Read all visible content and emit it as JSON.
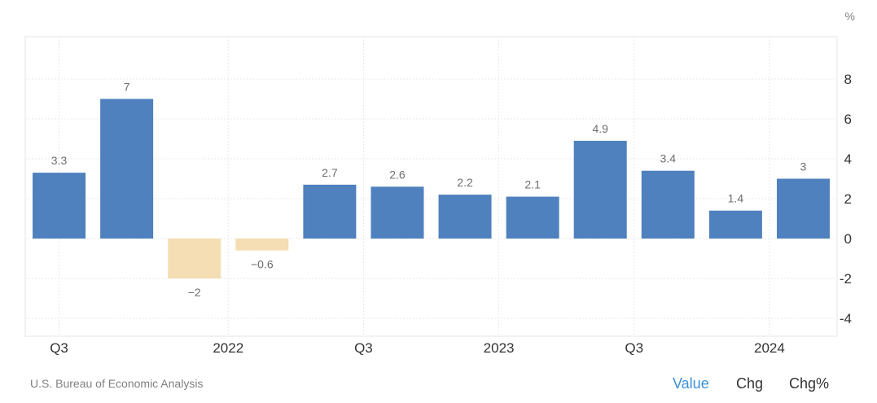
{
  "chart_data": {
    "type": "bar",
    "unit": "%",
    "ylim": [
      -5,
      10
    ],
    "yticks": [
      8,
      6,
      4,
      2,
      0,
      -2,
      -4
    ],
    "grid": true,
    "x_labels": [
      {
        "label": "Q3",
        "index": 0
      },
      {
        "label": "2022",
        "index": 2.5
      },
      {
        "label": "Q3",
        "index": 4.5
      },
      {
        "label": "2023",
        "index": 6.5
      },
      {
        "label": "Q3",
        "index": 8.5
      },
      {
        "label": "2024",
        "index": 10.5
      }
    ],
    "values": [
      3.3,
      7,
      -2,
      -0.6,
      2.7,
      2.6,
      2.2,
      2.1,
      4.9,
      3.4,
      1.4,
      3
    ],
    "data_labels": [
      "3.3",
      "7",
      "−2",
      "−0.6",
      "2.7",
      "2.6",
      "2.2",
      "2.1",
      "4.9",
      "3.4",
      "1.4",
      "3"
    ],
    "colors": {
      "positive": "#4e81bd",
      "negative": "#f5deb3"
    }
  },
  "footer": {
    "source": "U.S. Bureau of Economic Analysis",
    "buttons": [
      "Value",
      "Chg",
      "Chg%"
    ],
    "active_button": "Value",
    "active_color": "#3c8fd6"
  }
}
